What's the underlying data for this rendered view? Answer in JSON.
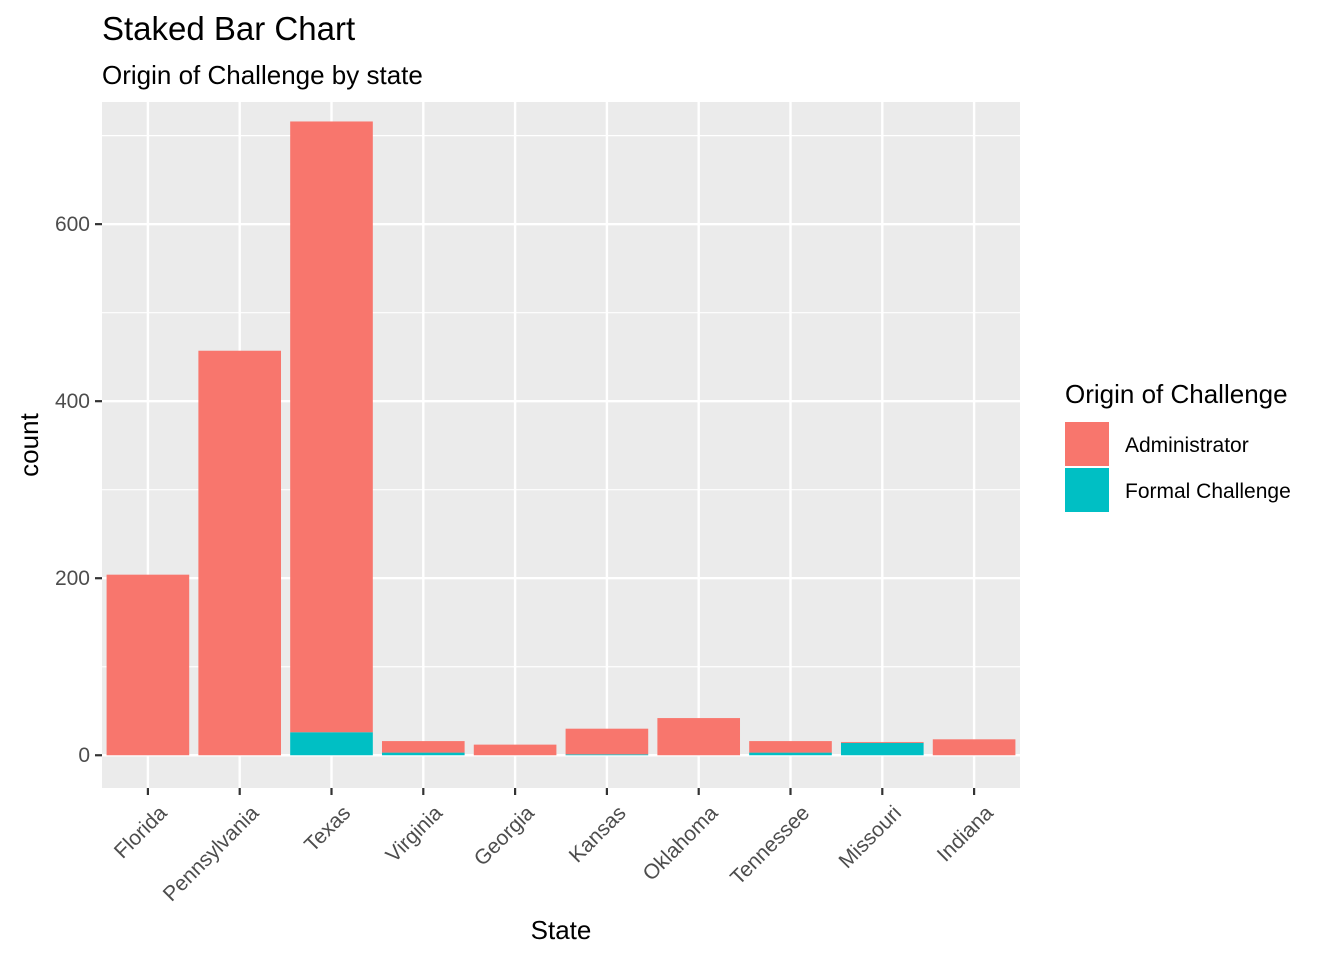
{
  "chart_data": {
    "type": "bar",
    "stacked": true,
    "title": "Staked Bar Chart",
    "subtitle": "Origin of Challenge by state",
    "xlabel": "State",
    "ylabel": "count",
    "categories": [
      "Florida",
      "Pennsylvania",
      "Texas",
      "Virginia",
      "Georgia",
      "Kansas",
      "Oklahoma",
      "Tennessee",
      "Missouri",
      "Indiana"
    ],
    "series": [
      {
        "name": "Administrator",
        "color": "#F8766D",
        "values": [
          204,
          457,
          690,
          13,
          12,
          29,
          42,
          13,
          1,
          18
        ]
      },
      {
        "name": "Formal Challenge",
        "color": "#00BFC4",
        "values": [
          0,
          0,
          26,
          3,
          0,
          1,
          0,
          3,
          14,
          0
        ]
      }
    ],
    "ylim": [
      -37,
      738
    ],
    "yticks": [
      0,
      200,
      400,
      600
    ],
    "grid": true,
    "legend": {
      "title": "Origin of Challenge",
      "position": "right"
    },
    "panel_background": "#EBEBEB",
    "grid_color": "#FFFFFF"
  }
}
